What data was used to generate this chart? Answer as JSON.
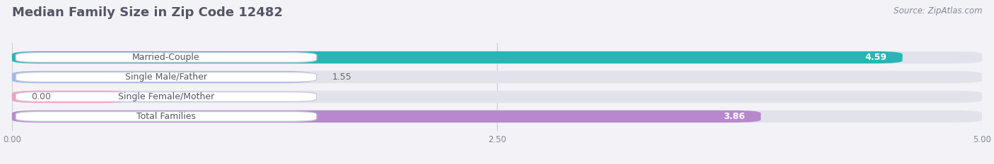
{
  "title": "Median Family Size in Zip Code 12482",
  "source": "Source: ZipAtlas.com",
  "categories": [
    "Married-Couple",
    "Single Male/Father",
    "Single Female/Mother",
    "Total Families"
  ],
  "values": [
    4.59,
    1.55,
    0.0,
    3.86
  ],
  "bar_colors": [
    "#29b5b5",
    "#a0b8e8",
    "#f0a0b8",
    "#b888cc"
  ],
  "value_text_colors": [
    "#ffffff",
    "#666666",
    "#666666",
    "#ffffff"
  ],
  "bar_height": 0.62,
  "xlim": [
    0,
    5.0
  ],
  "xticks": [
    0.0,
    2.5,
    5.0
  ],
  "xticklabels": [
    "0.00",
    "2.50",
    "5.00"
  ],
  "background_color": "#f2f2f7",
  "bar_track_color": "#e2e2ea",
  "title_fontsize": 13,
  "source_fontsize": 8.5,
  "label_fontsize": 9,
  "value_fontsize": 9
}
